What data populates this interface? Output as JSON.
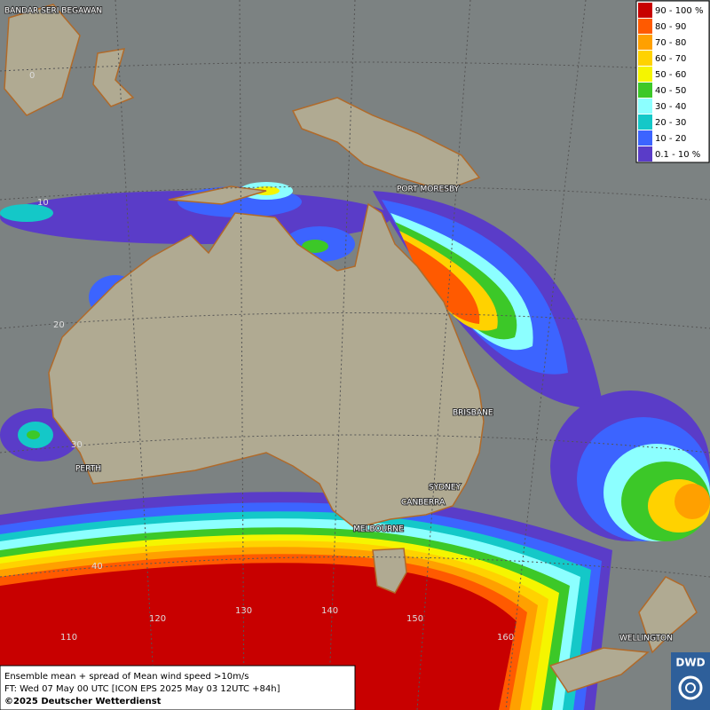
{
  "legend": {
    "items": [
      {
        "label": "90 - 100 %",
        "color": "#c80000"
      },
      {
        "label": "80 - 90",
        "color": "#ff5a00"
      },
      {
        "label": "70 - 80",
        "color": "#ffa000"
      },
      {
        "label": "60 - 70",
        "color": "#ffd200"
      },
      {
        "label": "50 - 60",
        "color": "#f5f500"
      },
      {
        "label": "40 - 50",
        "color": "#3cc828"
      },
      {
        "label": "30 - 40",
        "color": "#8cffff"
      },
      {
        "label": "20 - 30",
        "color": "#14c8c8"
      },
      {
        "label": "10 - 20",
        "color": "#3c64ff"
      },
      {
        "label": "0.1 - 10 %",
        "color": "#5a3cc8"
      }
    ]
  },
  "cities": [
    "BANDAR SERI BEGAWAN",
    "PORT MORESBY",
    "BRISBANE",
    "PERTH",
    "SYDNEY",
    "CANBERRA",
    "MELBOURNE",
    "WELLINGTON"
  ],
  "grid_labels": [
    "0",
    "10",
    "20",
    "30",
    "40",
    "110",
    "120",
    "130",
    "140",
    "150",
    "160"
  ],
  "footer": {
    "line1": "Ensemble mean + spread of Mean wind speed >10m/s",
    "line2": "FT: Wed 07 May 00 UTC [ICON EPS 2025 May 03 12UTC +84h]",
    "line3": "©2025 Deutscher Wetterdienst"
  },
  "logo": "DWD"
}
